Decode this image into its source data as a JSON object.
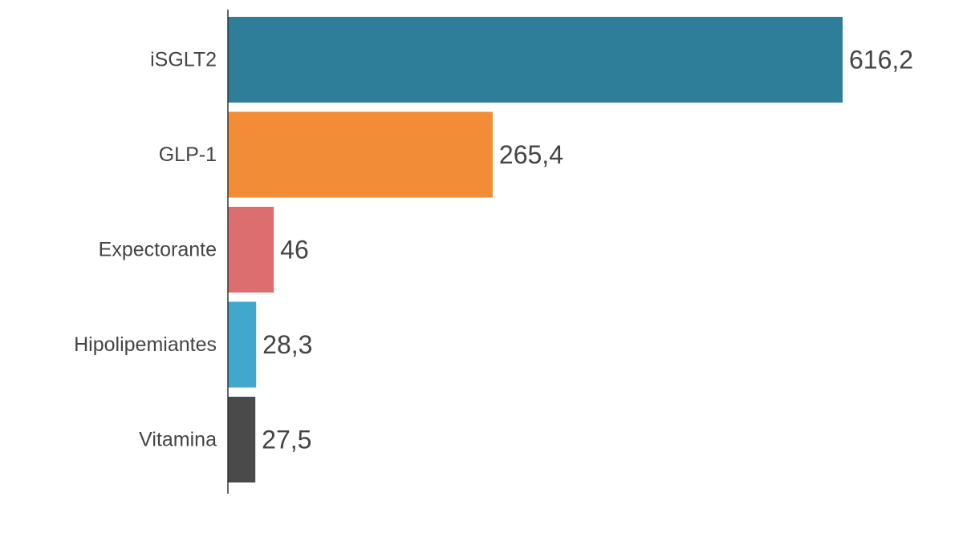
{
  "chart_data": {
    "type": "bar",
    "orientation": "horizontal",
    "categories": [
      "iSGLT2",
      "GLP-1",
      "Expectorante",
      "Hipolipemiantes",
      "Vitamina"
    ],
    "values": [
      616.2,
      265.4,
      46,
      28.3,
      27.5
    ],
    "value_labels": [
      "616,2",
      "265,4",
      "46",
      "28,3",
      "27,5"
    ],
    "colors": [
      "#2e7d99",
      "#f28c36",
      "#dc6e6f",
      "#41a7cc",
      "#4a4a4a"
    ],
    "title": "",
    "xlabel": "",
    "ylabel": "",
    "xlim": [
      0,
      616.2
    ],
    "grid": false,
    "legend": "none"
  }
}
